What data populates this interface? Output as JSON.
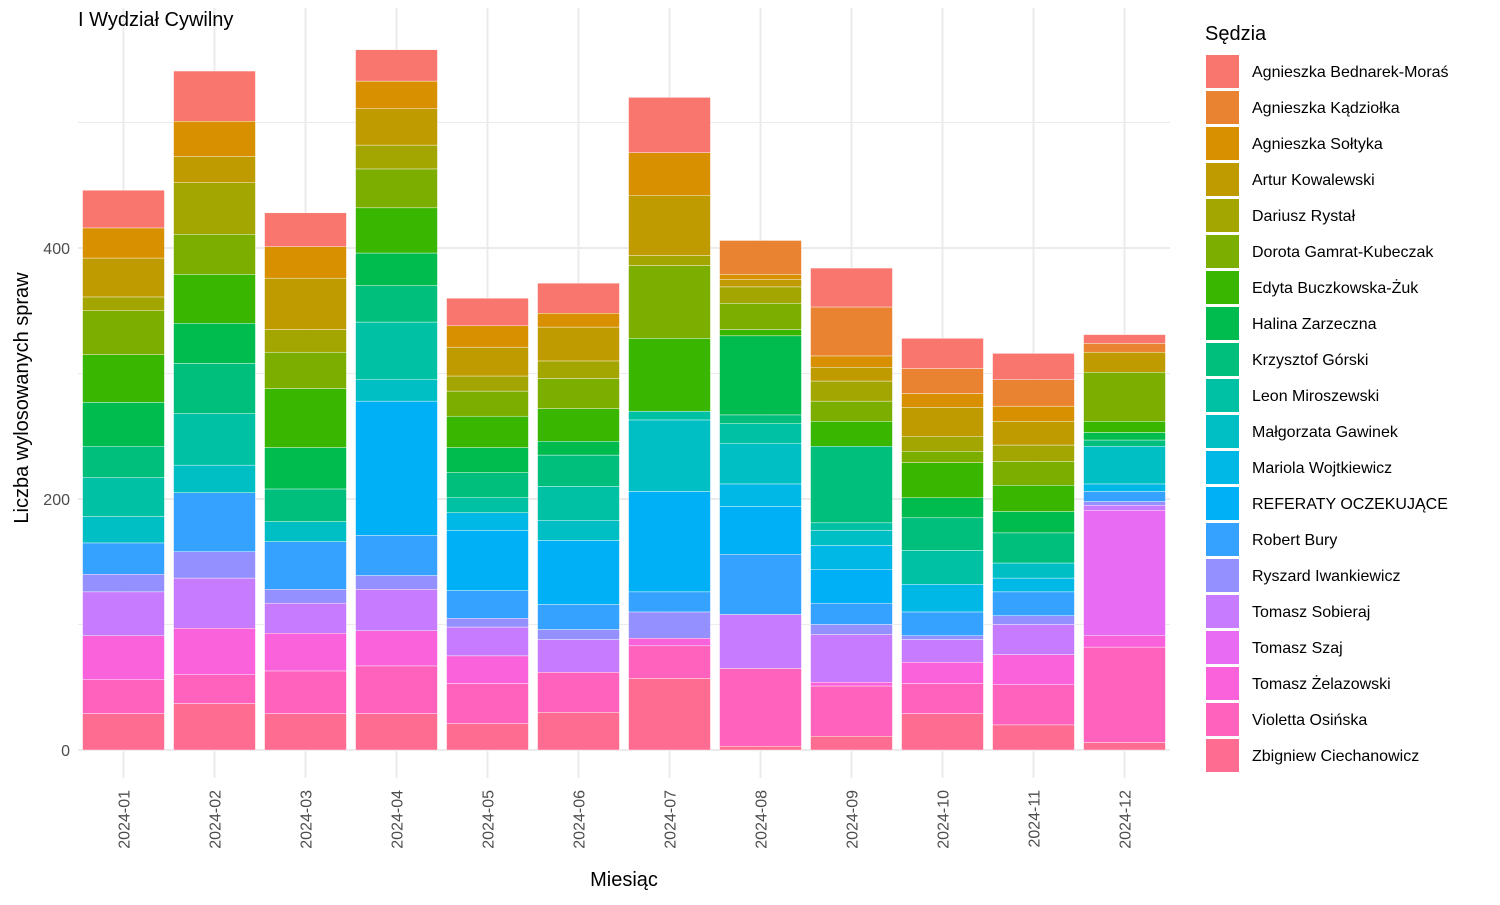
{
  "chart_data": {
    "type": "bar",
    "stacked": true,
    "title": "I Wydział Cywilny",
    "xlabel": "Miesiąc",
    "ylabel": "Liczba wylosowanych spraw",
    "ylim": [
      0,
      580
    ],
    "yticks": [
      0,
      200,
      400
    ],
    "grid": true,
    "legend_title": "Sędzia",
    "legend_position": "right",
    "categories": [
      "2024-01",
      "2024-02",
      "2024-03",
      "2024-04",
      "2024-05",
      "2024-06",
      "2024-07",
      "2024-08",
      "2024-09",
      "2024-10",
      "2024-11",
      "2024-12"
    ],
    "series": [
      {
        "name": "Agnieszka Bednarek-Moraś",
        "color": "#F8766D",
        "values": [
          30,
          40,
          27,
          25,
          22,
          24,
          44,
          0,
          31,
          24,
          21,
          7
        ]
      },
      {
        "name": "Agnieszka Kądziołka",
        "color": "#EA8331",
        "values": [
          0,
          0,
          0,
          0,
          0,
          0,
          0,
          27,
          39,
          20,
          21,
          7
        ]
      },
      {
        "name": "Agnieszka Sołtyka",
        "color": "#D89000",
        "values": [
          24,
          28,
          25,
          22,
          17,
          11,
          34,
          4,
          9,
          11,
          12,
          0
        ]
      },
      {
        "name": "Artur Kowalewski",
        "color": "#C09B00",
        "values": [
          31,
          21,
          41,
          29,
          23,
          27,
          48,
          6,
          11,
          23,
          19,
          16
        ]
      },
      {
        "name": "Dariusz Rystał",
        "color": "#A3A500",
        "values": [
          11,
          41,
          18,
          19,
          12,
          14,
          8,
          13,
          16,
          12,
          13,
          0
        ]
      },
      {
        "name": "Dorota Gamrat-Kubeczak",
        "color": "#7CAE00",
        "values": [
          35,
          32,
          29,
          31,
          20,
          24,
          58,
          21,
          16,
          9,
          19,
          39
        ]
      },
      {
        "name": "Edyta Buczkowska-Żuk",
        "color": "#39B600",
        "values": [
          38,
          39,
          47,
          36,
          25,
          26,
          58,
          5,
          20,
          28,
          21,
          9
        ]
      },
      {
        "name": "Halina Zarzeczna",
        "color": "#00BB4E",
        "values": [
          35,
          32,
          33,
          26,
          20,
          11,
          0,
          63,
          0,
          16,
          17,
          6
        ]
      },
      {
        "name": "Krzysztof Górski",
        "color": "#00BF7D",
        "values": [
          25,
          40,
          26,
          29,
          20,
          25,
          0,
          7,
          61,
          26,
          24,
          5
        ]
      },
      {
        "name": "Leon Miroszewski",
        "color": "#00C1A3",
        "values": [
          31,
          41,
          0,
          46,
          12,
          27,
          7,
          16,
          6,
          27,
          0,
          0
        ]
      },
      {
        "name": "Małgorzata Gawinek",
        "color": "#00BFC4",
        "values": [
          21,
          22,
          16,
          17,
          0,
          16,
          57,
          32,
          12,
          0,
          12,
          30
        ]
      },
      {
        "name": "Mariola Wojtkiewicz",
        "color": "#00B8E5",
        "values": [
          0,
          0,
          0,
          0,
          14,
          0,
          0,
          18,
          19,
          22,
          11,
          6
        ]
      },
      {
        "name": "REFERATY OCZEKUJĄCE",
        "color": "#00B0F6",
        "values": [
          0,
          0,
          0,
          107,
          48,
          51,
          80,
          38,
          27,
          0,
          0,
          0
        ]
      },
      {
        "name": "Robert Bury",
        "color": "#35A2FF",
        "values": [
          25,
          47,
          38,
          32,
          22,
          20,
          16,
          48,
          17,
          19,
          19,
          8
        ]
      },
      {
        "name": "Ryszard Iwankiewicz",
        "color": "#9590FF",
        "values": [
          14,
          21,
          11,
          11,
          7,
          8,
          21,
          0,
          8,
          3,
          7,
          3
        ]
      },
      {
        "name": "Tomasz Sobieraj",
        "color": "#C77CFF",
        "values": [
          35,
          40,
          24,
          33,
          23,
          26,
          0,
          43,
          38,
          18,
          24,
          4
        ]
      },
      {
        "name": "Tomasz Szaj",
        "color": "#E76BF3",
        "values": [
          0,
          0,
          0,
          0,
          0,
          0,
          0,
          0,
          0,
          0,
          0,
          100
        ]
      },
      {
        "name": "Tomasz Żelazowski",
        "color": "#FA62DB",
        "values": [
          35,
          37,
          30,
          28,
          22,
          0,
          6,
          0,
          3,
          17,
          24,
          9
        ]
      },
      {
        "name": "Violetta Osińska",
        "color": "#FF62BC",
        "values": [
          27,
          23,
          34,
          38,
          32,
          32,
          26,
          62,
          40,
          24,
          32,
          76
        ]
      },
      {
        "name": "Zbigniew Ciechanowicz",
        "color": "#FF6C91",
        "values": [
          29,
          37,
          29,
          29,
          21,
          30,
          57,
          3,
          11,
          29,
          20,
          6
        ]
      }
    ]
  }
}
